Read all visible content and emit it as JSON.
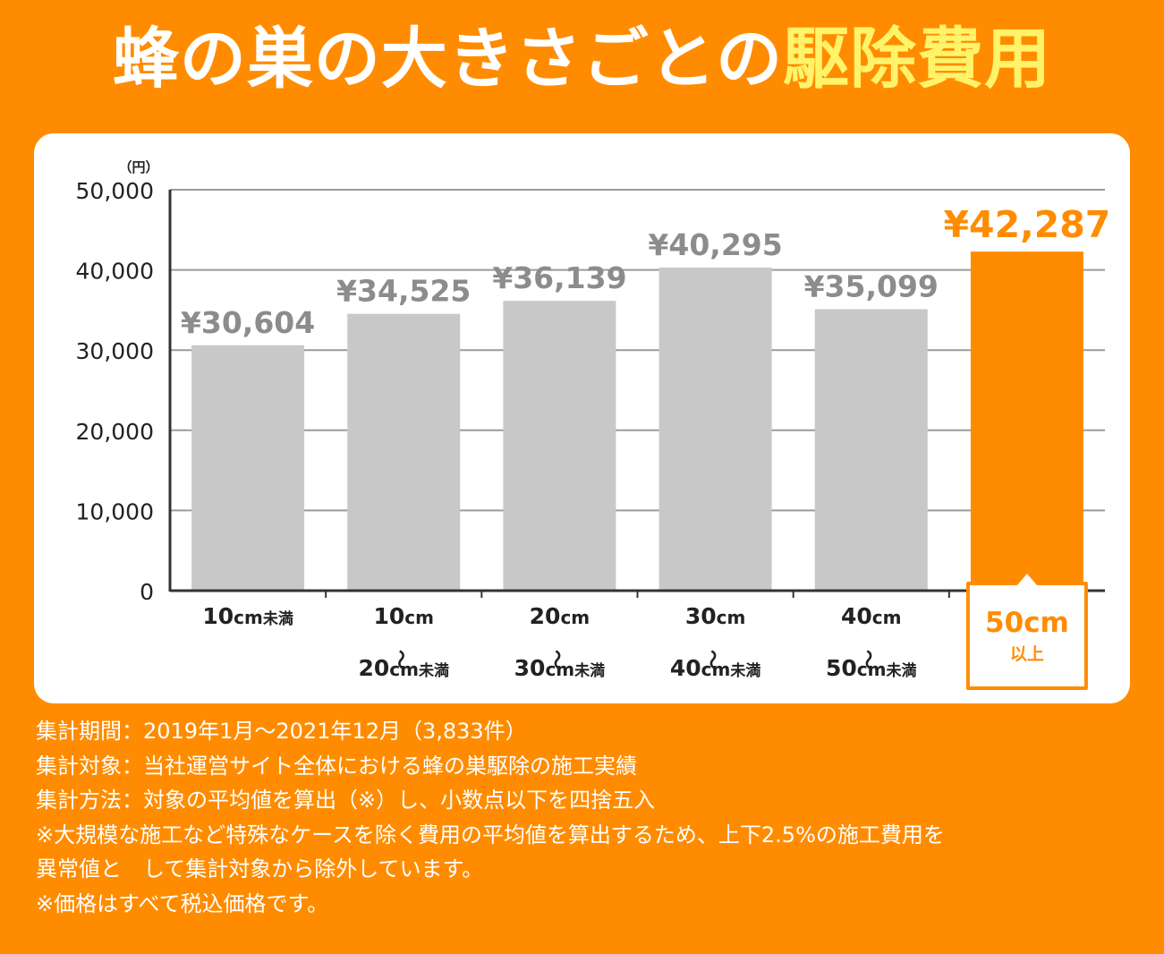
{
  "title": {
    "main": "蜂の巣の大きさごとの",
    "highlight": "駆除費用"
  },
  "colors": {
    "background": "#FF8C00",
    "bar": "#C8C8C8",
    "highlight_bar": "#FF8C00",
    "value_label": "#8C8C8C",
    "title_highlight": "#FFF36A"
  },
  "chart_data": {
    "type": "bar",
    "unit_label": "（円）",
    "ylim": [
      0,
      50000
    ],
    "yticks": [
      "0",
      "10,000",
      "20,000",
      "30,000",
      "40,000",
      "50,000"
    ],
    "grid": true,
    "categories": [
      {
        "lines": [
          [
            {
              "text": "10",
              "style": "num"
            },
            {
              "text": "cm",
              "style": "unit"
            },
            {
              "text": "未満",
              "style": "jp"
            }
          ]
        ]
      },
      {
        "lines": [
          [
            {
              "text": "10",
              "style": "num"
            },
            {
              "text": "cm",
              "style": "unit"
            }
          ],
          [
            {
              "text": "〜",
              "style": "tilde"
            }
          ],
          [
            {
              "text": "20",
              "style": "num"
            },
            {
              "text": "cm",
              "style": "unit"
            },
            {
              "text": "未満",
              "style": "jp"
            }
          ]
        ]
      },
      {
        "lines": [
          [
            {
              "text": "20",
              "style": "num"
            },
            {
              "text": "cm",
              "style": "unit"
            }
          ],
          [
            {
              "text": "〜",
              "style": "tilde"
            }
          ],
          [
            {
              "text": "30",
              "style": "num"
            },
            {
              "text": "cm",
              "style": "unit"
            },
            {
              "text": "未満",
              "style": "jp"
            }
          ]
        ]
      },
      {
        "lines": [
          [
            {
              "text": "30",
              "style": "num"
            },
            {
              "text": "cm",
              "style": "unit"
            }
          ],
          [
            {
              "text": "〜",
              "style": "tilde"
            }
          ],
          [
            {
              "text": "40",
              "style": "num"
            },
            {
              "text": "cm",
              "style": "unit"
            },
            {
              "text": "未満",
              "style": "jp"
            }
          ]
        ]
      },
      {
        "lines": [
          [
            {
              "text": "40",
              "style": "num"
            },
            {
              "text": "cm",
              "style": "unit"
            }
          ],
          [
            {
              "text": "〜",
              "style": "tilde"
            }
          ],
          [
            {
              "text": "50",
              "style": "num"
            },
            {
              "text": "cm",
              "style": "unit"
            },
            {
              "text": "未満",
              "style": "jp"
            }
          ]
        ]
      },
      {
        "lines": [
          [
            {
              "text": "50cm",
              "style": "big"
            }
          ],
          [
            {
              "text": "以上",
              "style": "small"
            }
          ]
        ],
        "highlight": true
      }
    ],
    "values": [
      30604,
      34525,
      36139,
      40295,
      35099,
      42287
    ],
    "value_labels": [
      "¥30,604",
      "¥34,525",
      "¥36,139",
      "¥40,295",
      "¥35,099",
      "¥42,287"
    ],
    "highlight_index": 5
  },
  "notes": [
    "集計期間：2019年1月〜2021年12月（3,833件）",
    "集計対象：当社運営サイト全体における蜂の巣駆除の施工実績",
    "集計方法：対象の平均値を算出（※）し、小数点以下を四捨五入",
    "※大規模な施工など特殊なケースを除く費用の平均値を算出するため、上下2.5%の施工費用を",
    "異常値と　して集計対象から除外しています。",
    "※価格はすべて税込価格です。"
  ]
}
